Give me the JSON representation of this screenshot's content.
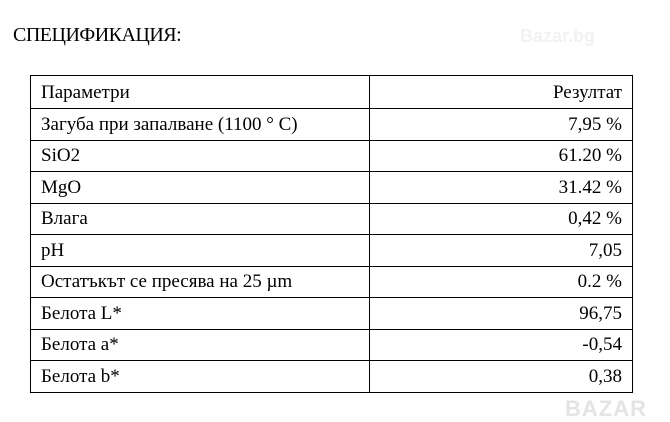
{
  "watermark": "Bazar.bg",
  "title": "СПЕЦИФИКАЦИЯ:",
  "table": {
    "headers": [
      "Параметри",
      "Резултат"
    ],
    "rows": [
      [
        "Загуба при запалване (1100 ° C)",
        "7,95 %"
      ],
      [
        "SiO2",
        "61.20 %"
      ],
      [
        "MgO",
        "31.42 %"
      ],
      [
        "Влага",
        "0,42 %"
      ],
      [
        "pH",
        "7,05"
      ],
      [
        "Остатъкът се пресява на 25 µm",
        "0.2 %"
      ],
      [
        "Белота L*",
        "96,75"
      ],
      [
        "Белота a*",
        "-0,54"
      ],
      [
        "Белота b*",
        "0,38"
      ]
    ]
  },
  "logo": "BAZAR"
}
